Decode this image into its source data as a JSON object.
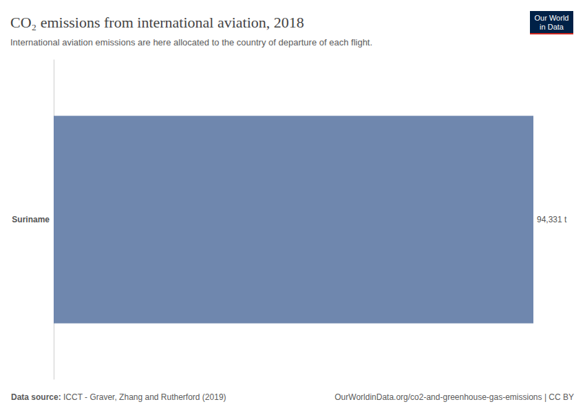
{
  "chart_data": {
    "type": "bar",
    "title": "CO₂ emissions from international aviation, 2018",
    "subtitle": "International aviation emissions are here allocated to the country of departure of each flight.",
    "categories": [
      "Suriname"
    ],
    "values": [
      94331
    ],
    "value_labels": [
      "94,331 t"
    ],
    "color": "#6f87ae",
    "xlim": [
      0,
      94331
    ],
    "orientation": "horizontal",
    "data_labels": true,
    "tick_labels": "y",
    "grid": false,
    "source_label": "Data source:",
    "source": "ICCT - Graver, Zhang and Rutherford (2019)",
    "url": "OurWorldinData.org/co2-and-greenhouse-gas-emissions | CC BY",
    "logo": [
      "Our World",
      "in Data"
    ]
  }
}
